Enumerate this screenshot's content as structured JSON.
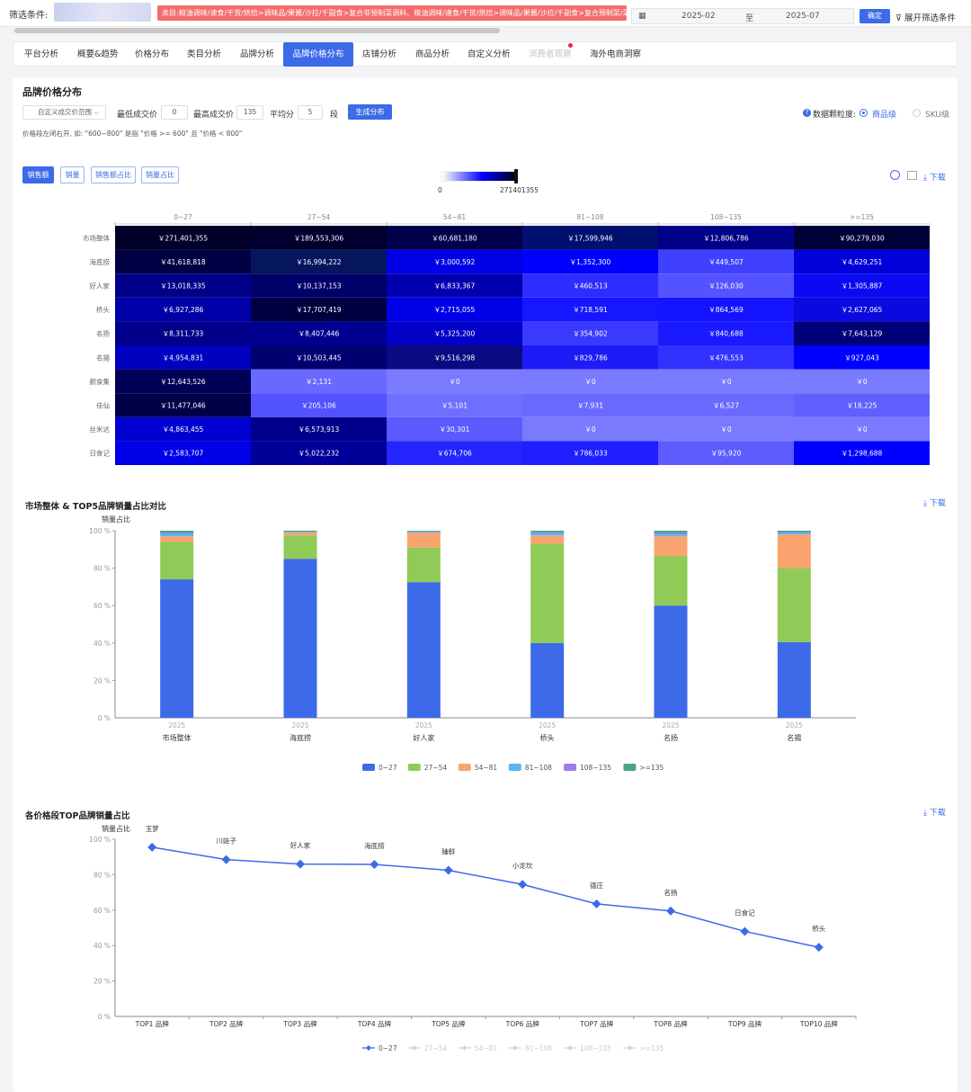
{
  "filter": {
    "label": "筛选条件:",
    "category": "类目:粮油调味/速食/干货/烘焙>调味品/果酱/沙拉/千副食>复合非预制菜调料、粮油调味/速食/干货/烘焙>调味品/果酱/沙拉/千副食>复合预制菜/菜谱式调料>火锅",
    "date_from": "2025-02",
    "date_sep": "至",
    "date_to": "2025-07",
    "confirm": "确定",
    "expand": "展开筛选条件"
  },
  "tabs": [
    "平台分析",
    "概要&趋势",
    "价格分布",
    "类目分析",
    "品牌分析",
    "品牌价格分布",
    "店铺分析",
    "商品分析",
    "自定义分析",
    "消费者观察",
    "海外电商洞察"
  ],
  "section": {
    "title": "品牌价格分布",
    "range_select": "自定义成交价范围",
    "min_label": "最低成交价",
    "min_value": "0",
    "max_label": "最高成交价",
    "max_value": "135",
    "avg_label": "平均分",
    "seg_value": "5",
    "seg_unit": "段",
    "gen_button": "生成分布",
    "note": "价格段左闭右开, 如: \"600~800\" 是指 \"价格 >= 600\" 且 \"价格 < 800\"",
    "gran_label": "数据颗粒度:",
    "gran_opt1": "商品级",
    "gran_opt2": "SKU级",
    "download": "下载"
  },
  "metrics": [
    "销售额",
    "销量",
    "销售额占比",
    "销量占比"
  ],
  "legend": {
    "min": "0",
    "max": "271401355"
  },
  "colors": {
    "accent": "#3d6ae8",
    "tag": "#f56c6c",
    "dot": "#f0243a"
  },
  "heatmap": {
    "columns": [
      "0~27",
      "27~54",
      "54~81",
      "81~108",
      "108~135",
      ">=135"
    ],
    "rows": [
      {
        "name": "市场整体",
        "cells": [
          "￥271,401,355",
          "￥189,553,306",
          "￥60,681,180",
          "￥17,599,946",
          "￥12,806,786",
          "￥90,279,030"
        ]
      },
      {
        "name": "海底捞",
        "cells": [
          "￥41,618,818",
          "￥16,994,222",
          "￥3,000,592",
          "￥1,352,300",
          "￥449,507",
          "￥4,629,251"
        ]
      },
      {
        "name": "好人家",
        "cells": [
          "￥13,018,335",
          "￥10,137,153",
          "￥6,833,367",
          "￥460,513",
          "￥126,030",
          "￥1,305,887"
        ]
      },
      {
        "name": "桥头",
        "cells": [
          "￥6,927,286",
          "￥17,707,419",
          "￥2,715,055",
          "￥718,591",
          "￥864,569",
          "￥2,627,065"
        ]
      },
      {
        "name": "名扬",
        "cells": [
          "￥8,311,733",
          "￥8,407,446",
          "￥5,325,200",
          "￥354,902",
          "￥840,688",
          "￥7,643,129"
        ]
      },
      {
        "name": "名揚",
        "cells": [
          "￥4,954,831",
          "￥10,503,445",
          "￥9,516,298",
          "￥829,786",
          "￥476,553",
          "￥927,043"
        ]
      },
      {
        "name": "颜食集",
        "cells": [
          "￥12,643,526",
          "￥2,131",
          "￥0",
          "￥0",
          "￥0",
          "￥0"
        ]
      },
      {
        "name": "佳仙",
        "cells": [
          "￥11,477,046",
          "￥205,106",
          "￥5,101",
          "￥7,931",
          "￥6,527",
          "￥18,225"
        ]
      },
      {
        "name": "丝米达",
        "cells": [
          "￥4,863,455",
          "￥6,573,913",
          "￥30,301",
          "￥0",
          "￥0",
          "￥0"
        ]
      },
      {
        "name": "日食记",
        "cells": [
          "￥2,583,707",
          "￥5,022,232",
          "￥674,706",
          "￥786,033",
          "￥95,920",
          "￥1,298,688"
        ]
      }
    ],
    "colors": [
      [
        "#000028",
        "#00002f",
        "#00004c",
        "#001070",
        "#000088",
        "#000038"
      ],
      [
        "#000045",
        "#05165c",
        "#0000e6",
        "#0000ff",
        "#4040ff",
        "#0000d8"
      ],
      [
        "#000088",
        "#00006a",
        "#0000b0",
        "#2d2dff",
        "#5353ff",
        "#0a0af2"
      ],
      [
        "#0000a8",
        "#000040",
        "#0000e8",
        "#1717ff",
        "#1414ff",
        "#0a0ae0"
      ],
      [
        "#00008a",
        "#000090",
        "#0000c6",
        "#3a3aff",
        "#1a1aff",
        "#000078"
      ],
      [
        "#0000c0",
        "#000070",
        "#0a0a82",
        "#1c1cf6",
        "#3232ff",
        "#0000ff"
      ],
      [
        "#000058",
        "#6969ff",
        "#7a7aff",
        "#7a7aff",
        "#7a7aff",
        "#7a7aff"
      ],
      [
        "#000048",
        "#5252ff",
        "#6f6fff",
        "#6a6aff",
        "#6a6aff",
        "#6060ff"
      ],
      [
        "#0000d0",
        "#00008c",
        "#5a5aff",
        "#7a7aff",
        "#7a7aff",
        "#7a7aff"
      ],
      [
        "#0000e8",
        "#000099",
        "#2525ff",
        "#1e1eff",
        "#5c5cff",
        "#0000ff"
      ]
    ]
  },
  "chart_data": [
    {
      "type": "bar",
      "stacked": true,
      "title": "市场整体 & TOP5品牌销量占比对比",
      "ylabel": "销量占比",
      "ylim": [
        0,
        100
      ],
      "yticks": [
        "0 %",
        "20 %",
        "40 %",
        "60 %",
        "80 %",
        "100 %"
      ],
      "x_top": "2025",
      "categories": [
        "市场整体",
        "海底捞",
        "好人家",
        "桥头",
        "名扬",
        "名揚"
      ],
      "series": [
        {
          "name": "0~27",
          "color": "#3d6ae8",
          "values": [
            74,
            85,
            72.5,
            40,
            60,
            40.5
          ]
        },
        {
          "name": "27~54",
          "color": "#8fcb56",
          "values": [
            20,
            12.5,
            18.5,
            53,
            26.5,
            39.5
          ]
        },
        {
          "name": "54~81",
          "color": "#f9a46f",
          "values": [
            3,
            1.5,
            8,
            4.5,
            10.5,
            18
          ]
        },
        {
          "name": "81~108",
          "color": "#5bb5f5",
          "values": [
            1.3,
            0.3,
            0.5,
            1.3,
            1,
            1
          ]
        },
        {
          "name": "108~135",
          "color": "#9e7be6",
          "values": [
            0.4,
            0.1,
            0.1,
            0.4,
            0.7,
            0.3
          ]
        },
        {
          "name": ">=135",
          "color": "#4aa386",
          "values": [
            1.3,
            0.6,
            0.4,
            0.8,
            1.3,
            0.7
          ]
        }
      ]
    },
    {
      "type": "line",
      "title": "各价格段TOP品牌销量占比",
      "ylabel": "销量占比",
      "ylim": [
        0,
        100
      ],
      "yticks": [
        "0 %",
        "20 %",
        "40 %",
        "60 %",
        "80 %",
        "100 %"
      ],
      "categories": [
        "TOP1 品牌",
        "TOP2 品牌",
        "TOP3 品牌",
        "TOP4 品牌",
        "TOP5 品牌",
        "TOP6 品牌",
        "TOP7 品牌",
        "TOP8 品牌",
        "TOP9 品牌",
        "TOP10 品牌"
      ],
      "series": [
        {
          "name": "0~27",
          "color": "#3d6ae8",
          "values": [
            95.5,
            88.5,
            86,
            85.8,
            82.5,
            74.5,
            63.5,
            59.5,
            48,
            39
          ],
          "labels": [
            "玉梦",
            "川娃子",
            "好人家",
            "海底捞",
            "臻鲜",
            "小龙坎",
            "德庄",
            "名扬",
            "日食记",
            "桥头"
          ]
        }
      ],
      "legend": [
        "0~27",
        "27~54",
        "54~81",
        "81~108",
        "108~135",
        ">=135"
      ]
    }
  ]
}
